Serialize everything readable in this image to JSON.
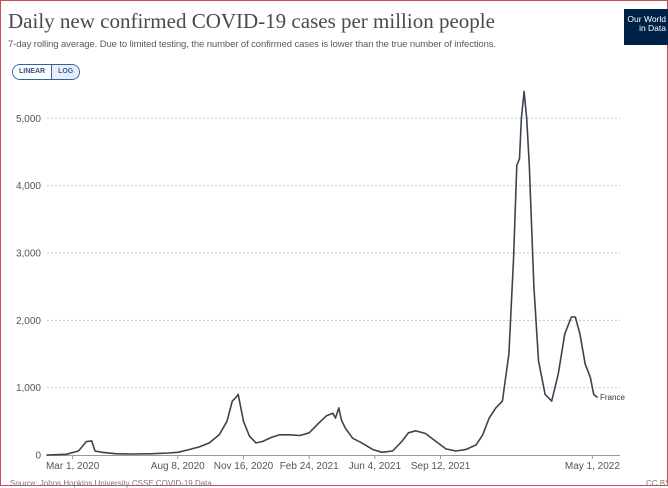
{
  "header": {
    "title": "Daily new confirmed COVID-19 cases per million people",
    "subtitle": "7-day rolling average. Due to limited testing, the number of confirmed cases is lower than the true number of infections.",
    "logo_line1": "Our World",
    "logo_line2": "in Data"
  },
  "controls": {
    "linear_label": "LINEAR",
    "log_label": "LOG",
    "selected": "LINEAR"
  },
  "footer": {
    "source": "Source: Johns Hopkins University CSSE COVID-19 Data",
    "license": "CC BY"
  },
  "colors": {
    "line": "#3a4450",
    "grid": "#c8c8c8",
    "frame": "#c94a55",
    "accent": "#3360a9",
    "logo_bg": "#002147"
  },
  "chart_data": {
    "type": "line",
    "title": "Daily new confirmed COVID-19 cases per million people",
    "subtitle": "7-day rolling average. Due to limited testing, the number of confirmed cases is lower than the true number of infections.",
    "xlabel": "",
    "ylabel": "",
    "ylim": [
      0,
      5450
    ],
    "xlim": [
      "2020-01-22",
      "2022-06-12"
    ],
    "yticks": [
      0,
      1000,
      2000,
      3000,
      4000,
      5000
    ],
    "ytick_labels": [
      "0",
      "1,000",
      "2,000",
      "3,000",
      "4,000",
      "5,000"
    ],
    "xticks": [
      "2020-03-01",
      "2020-08-08",
      "2020-11-16",
      "2021-02-24",
      "2021-06-04",
      "2021-09-12",
      "2022-05-01"
    ],
    "xtick_labels": [
      "Mar 1, 2020",
      "Aug 8, 2020",
      "Nov 16, 2020",
      "Feb 24, 2021",
      "Jun 4, 2021",
      "Sep 12, 2021",
      "May 1, 2022"
    ],
    "grid": "horizontal-dotted",
    "legend": "end-of-line label",
    "series": [
      {
        "name": "France",
        "x": [
          "2020-01-22",
          "2020-02-20",
          "2020-03-10",
          "2020-03-22",
          "2020-03-30",
          "2020-04-04",
          "2020-04-15",
          "2020-05-05",
          "2020-06-01",
          "2020-07-01",
          "2020-07-25",
          "2020-08-08",
          "2020-08-25",
          "2020-09-10",
          "2020-09-25",
          "2020-10-10",
          "2020-10-22",
          "2020-10-30",
          "2020-11-04",
          "2020-11-08",
          "2020-11-16",
          "2020-11-25",
          "2020-12-05",
          "2020-12-15",
          "2020-12-28",
          "2021-01-10",
          "2021-01-25",
          "2021-02-10",
          "2021-02-24",
          "2021-03-10",
          "2021-03-22",
          "2021-04-01",
          "2021-04-05",
          "2021-04-10",
          "2021-04-14",
          "2021-04-20",
          "2021-05-01",
          "2021-05-15",
          "2021-06-01",
          "2021-06-15",
          "2021-07-01",
          "2021-07-15",
          "2021-07-25",
          "2021-08-05",
          "2021-08-20",
          "2021-09-05",
          "2021-09-20",
          "2021-10-05",
          "2021-10-20",
          "2021-11-05",
          "2021-11-15",
          "2021-11-25",
          "2021-12-05",
          "2021-12-15",
          "2021-12-25",
          "2022-01-01",
          "2022-01-06",
          "2022-01-10",
          "2022-01-13",
          "2022-01-17",
          "2022-01-21",
          "2022-01-25",
          "2022-02-01",
          "2022-02-08",
          "2022-02-18",
          "2022-02-28",
          "2022-03-10",
          "2022-03-20",
          "2022-03-30",
          "2022-04-05",
          "2022-04-12",
          "2022-04-20",
          "2022-04-28",
          "2022-05-03",
          "2022-05-08"
        ],
        "y": [
          0,
          10,
          60,
          200,
          210,
          60,
          40,
          20,
          15,
          20,
          30,
          40,
          80,
          120,
          180,
          300,
          500,
          800,
          850,
          900,
          500,
          280,
          180,
          200,
          260,
          300,
          300,
          290,
          330,
          470,
          580,
          620,
          550,
          700,
          520,
          400,
          250,
          180,
          80,
          40,
          60,
          200,
          330,
          360,
          320,
          200,
          90,
          60,
          80,
          150,
          300,
          550,
          700,
          800,
          1500,
          2900,
          4300,
          4400,
          5000,
          5400,
          5000,
          4300,
          2500,
          1400,
          900,
          800,
          1200,
          1800,
          2050,
          2050,
          1800,
          1350,
          1150,
          900,
          860
        ]
      }
    ],
    "series_label": "France"
  }
}
